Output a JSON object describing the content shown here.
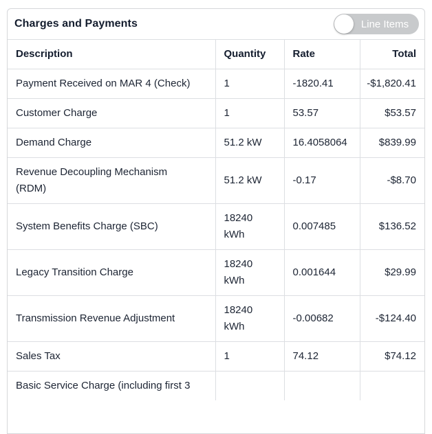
{
  "header": {
    "title": "Charges and Payments",
    "toggle": {
      "label": "Line Items",
      "state": "off"
    }
  },
  "table": {
    "columns": [
      "Description",
      "Quantity",
      "Rate",
      "Total"
    ],
    "rows": [
      {
        "description": "Payment Received on MAR 4 (Check)",
        "quantity": "1",
        "rate": "-1820.41",
        "total": "-$1,820.41"
      },
      {
        "description": "Customer Charge",
        "quantity": "1",
        "rate": "53.57",
        "total": "$53.57"
      },
      {
        "description": "Demand Charge",
        "quantity": "51.2 kW",
        "rate": "16.4058064",
        "total": "$839.99"
      },
      {
        "description": "Revenue Decoupling Mechanism (RDM)",
        "quantity": "51.2 kW",
        "rate": "-0.17",
        "total": "-$8.70"
      },
      {
        "description": "System Benefits Charge (SBC)",
        "quantity": "18240 kWh",
        "rate": "0.007485",
        "total": "$136.52"
      },
      {
        "description": "Legacy Transition Charge",
        "quantity": "18240 kWh",
        "rate": "0.001644",
        "total": "$29.99"
      },
      {
        "description": "Transmission Revenue Adjustment",
        "quantity": "18240 kWh",
        "rate": "-0.00682",
        "total": "-$124.40"
      },
      {
        "description": "Sales Tax",
        "quantity": "1",
        "rate": "74.12",
        "total": "$74.12"
      },
      {
        "description": "Basic Service Charge (including first 3",
        "quantity": "",
        "rate": "",
        "total": ""
      }
    ]
  },
  "colors": {
    "text": "#1c2433",
    "border": "#dcdee2",
    "card_border": "#d5d7da",
    "toggle_off_bg": "#c8cacc",
    "toggle_knob": "#ffffff",
    "toggle_label": "#ffffff"
  }
}
